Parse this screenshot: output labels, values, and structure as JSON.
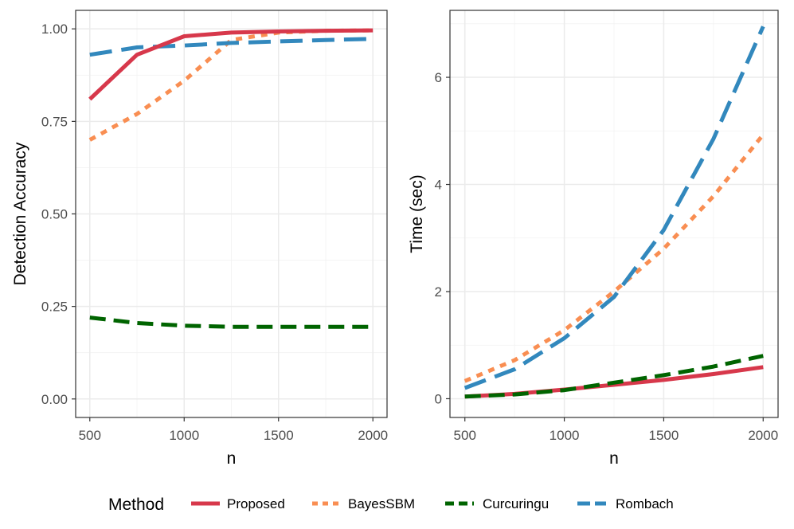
{
  "chart_data": [
    {
      "type": "line",
      "xlabel": "n",
      "ylabel": "Detection Accuracy",
      "xlim": [
        500,
        2000
      ],
      "ylim": [
        0.0,
        1.0
      ],
      "xticks": [
        500,
        1000,
        1500,
        2000
      ],
      "xtick_labels": [
        "500",
        "1000",
        "1500",
        "2000"
      ],
      "yticks": [
        0.0,
        0.25,
        0.5,
        0.75,
        1.0
      ],
      "ytick_labels": [
        "0.00",
        "0.25",
        "0.50",
        "0.75",
        "1.00"
      ],
      "grid": true,
      "x": [
        500,
        750,
        1000,
        1250,
        1500,
        1750,
        2000
      ],
      "series": [
        {
          "name": "Proposed",
          "values": [
            0.81,
            0.93,
            0.98,
            0.99,
            0.993,
            0.995,
            0.996
          ]
        },
        {
          "name": "BayesSBM",
          "values": [
            0.7,
            0.77,
            0.86,
            0.97,
            0.99,
            0.995,
            0.996
          ]
        },
        {
          "name": "Curcuringu",
          "values": [
            0.22,
            0.205,
            0.198,
            0.195,
            0.195,
            0.195,
            0.195
          ]
        },
        {
          "name": "Rombach",
          "values": [
            0.93,
            0.95,
            0.955,
            0.962,
            0.966,
            0.97,
            0.973
          ]
        }
      ]
    },
    {
      "type": "line",
      "xlabel": "n",
      "ylabel": "Time (sec)",
      "xlim": [
        500,
        2000
      ],
      "ylim": [
        0,
        7
      ],
      "xticks": [
        500,
        1000,
        1500,
        2000
      ],
      "xtick_labels": [
        "500",
        "1000",
        "1500",
        "2000"
      ],
      "yticks": [
        0,
        2,
        4,
        6
      ],
      "ytick_labels": [
        "0",
        "2",
        "4",
        "6"
      ],
      "grid": true,
      "x": [
        500,
        750,
        1000,
        1250,
        1500,
        1750,
        2000
      ],
      "series": [
        {
          "name": "Proposed",
          "values": [
            0.04,
            0.09,
            0.17,
            0.26,
            0.35,
            0.46,
            0.59
          ]
        },
        {
          "name": "BayesSBM",
          "values": [
            0.33,
            0.72,
            1.28,
            2.0,
            2.8,
            3.78,
            4.93
          ]
        },
        {
          "name": "Curcuringu",
          "values": [
            0.04,
            0.08,
            0.16,
            0.3,
            0.44,
            0.6,
            0.8
          ]
        },
        {
          "name": "Rombach",
          "values": [
            0.2,
            0.55,
            1.13,
            1.9,
            3.15,
            4.85,
            6.95
          ]
        }
      ]
    }
  ],
  "legend": {
    "title": "Method",
    "position": "bottom",
    "entries": [
      {
        "label": "Proposed",
        "color": "#d7384b",
        "dash": "solid"
      },
      {
        "label": "BayesSBM",
        "color": "#f98e52",
        "dash": "dotted"
      },
      {
        "label": "Curcuringu",
        "color": "#006400",
        "dash": "dashed"
      },
      {
        "label": "Rombach",
        "color": "#3288bd",
        "dash": "longdash"
      }
    ]
  }
}
